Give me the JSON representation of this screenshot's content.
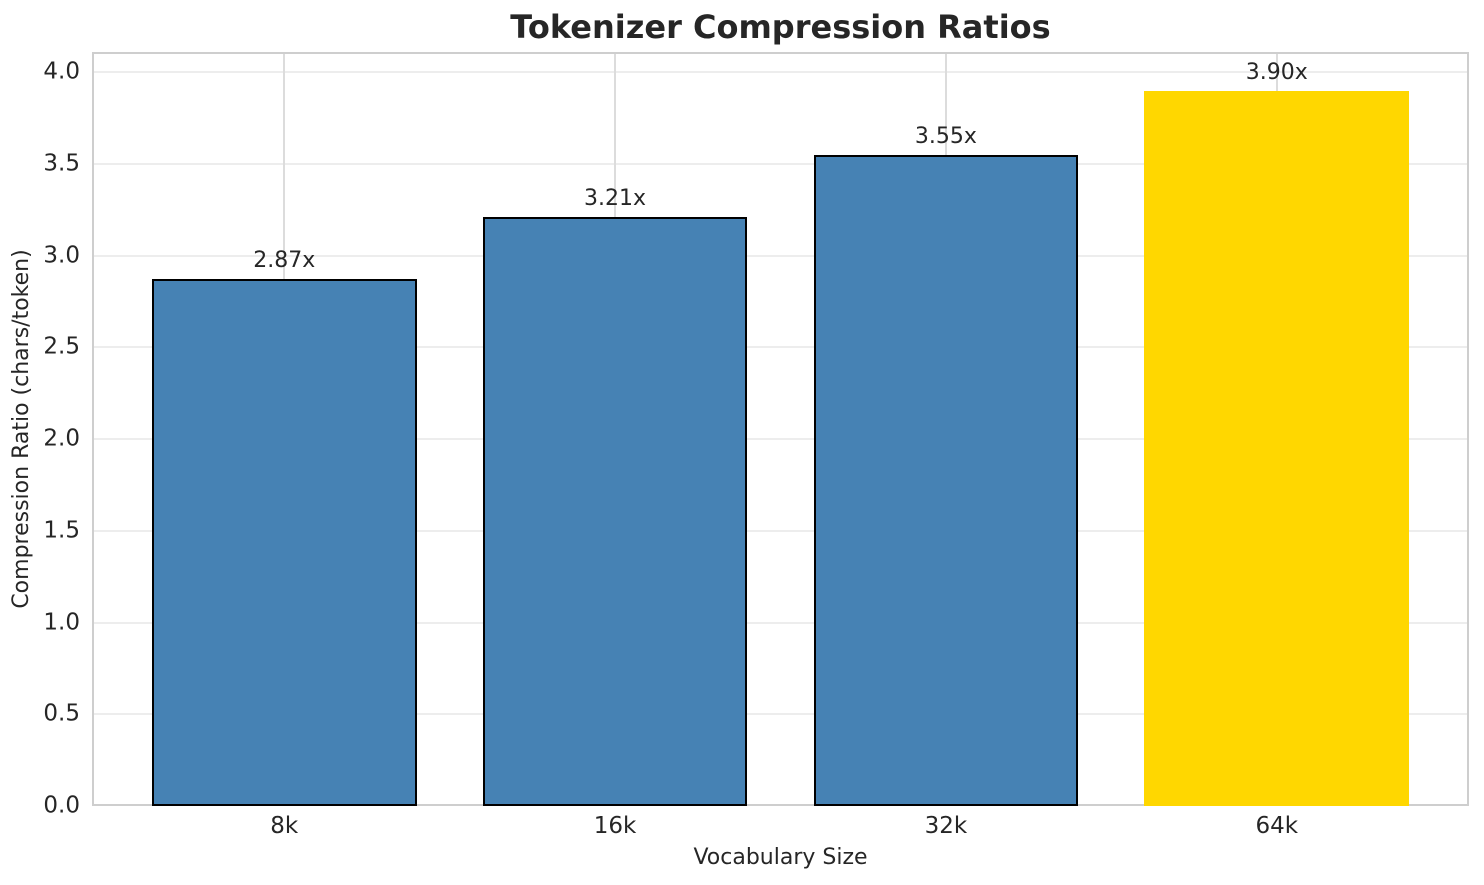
{
  "title": "Tokenizer Compression Ratios",
  "chart_data": {
    "type": "bar",
    "title": "Tokenizer Compression Ratios",
    "xlabel": "Vocabulary Size",
    "ylabel": "Compression Ratio (chars/token)",
    "categories": [
      "8k",
      "16k",
      "32k",
      "64k"
    ],
    "values": [
      2.87,
      3.21,
      3.55,
      3.9
    ],
    "bar_value_labels": [
      "2.87x",
      "3.21x",
      "3.55x",
      "3.90x"
    ],
    "bar_colors": [
      "#4682B4",
      "#4682B4",
      "#4682B4",
      "#FFD700"
    ],
    "bar_edge_colors": [
      "#000000",
      "#000000",
      "#000000",
      "#FFD700"
    ],
    "highlight_category": "64k",
    "ylim": [
      0,
      4.11
    ],
    "yticks": [
      0.0,
      0.5,
      1.0,
      1.5,
      2.0,
      2.5,
      3.0,
      3.5,
      4.0
    ],
    "ytick_labels": [
      "0.0",
      "0.5",
      "1.0",
      "1.5",
      "2.0",
      "2.5",
      "3.0",
      "3.5",
      "4.0"
    ],
    "grid": true,
    "grid_axis": "both",
    "legend": false,
    "colors": {
      "blue_bar": "#4682B4",
      "gold_bar": "#FFD700",
      "bar_edge": "#000000",
      "hgrid": "#ededed",
      "vgrid": "#dcdcdc",
      "spine": "#cecece",
      "text": "#262626",
      "background": "#ffffff"
    }
  }
}
